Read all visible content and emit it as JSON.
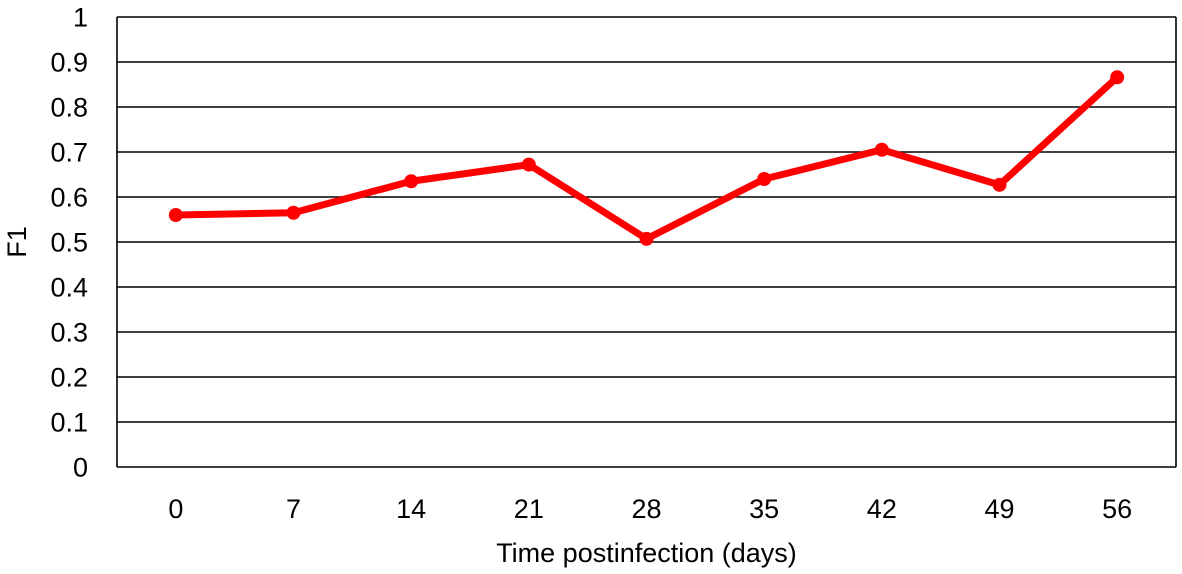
{
  "chart_data": {
    "type": "line",
    "title": "",
    "xlabel": "Time postinfection (days)",
    "ylabel": "F1",
    "categories": [
      "0",
      "7",
      "14",
      "21",
      "28",
      "35",
      "42",
      "49",
      "56"
    ],
    "series": [
      {
        "values": [
          0.56,
          0.565,
          0.635,
          0.672,
          0.507,
          0.64,
          0.705,
          0.627,
          0.866
        ],
        "color": "#ff0000"
      }
    ],
    "ylim": [
      0,
      1
    ],
    "yticks": [
      "0",
      "0.1",
      "0.2",
      "0.3",
      "0.4",
      "0.5",
      "0.6",
      "0.7",
      "0.8",
      "0.9",
      "1"
    ],
    "grid": "horizontal",
    "legend": "none"
  }
}
